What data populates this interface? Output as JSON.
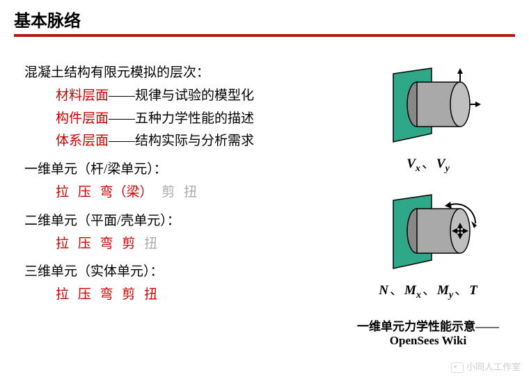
{
  "header": {
    "title": "基本脉络"
  },
  "left": {
    "h1": "混凝土结构有限元模拟的层次：",
    "l1a": "材料层面",
    "l1b": "——规律与试验的模型化",
    "l2a": "构件层面",
    "l2b": "——五种力学性能的描述",
    "l3a": "体系层面",
    "l3b": "——结构实际与分析需求",
    "h2": "一维单元（杆/梁单元）：",
    "s2_1": "拉",
    "s2_2": "压",
    "s2_3": "弯（梁）",
    "s2_4": "剪",
    "s2_5": "扭",
    "h3": "二维单元（平面/壳单元）：",
    "s3_1": "拉",
    "s3_2": "压",
    "s3_3": "弯",
    "s3_4": "剪",
    "s3_5": "扭",
    "h4": "三维单元（实体单元）：",
    "s4_1": "拉",
    "s4_2": "压",
    "s4_3": "弯",
    "s4_4": "剪",
    "s4_5": "扭"
  },
  "right": {
    "cap1_html": "<i>V<span class='sub'>x</span></i><span class='sep'>、</span><i>V<span class='sub'>y</span></i>",
    "cap2_html": "<i>N</i><span class='sep'>、</span><i>M<span class='sub'>x</span></i><span class='sep'>、</span><i>M<span class='sub'>y</span></i><span class='sep'>、</span><i>T</i>",
    "bottom": "一维单元力学性能示意——OpenSees Wiki"
  },
  "watermark": "小同人工作室",
  "colors": {
    "accent_red": "#b01818",
    "text_red": "#cc0000",
    "text_gray": "#aaaaaa",
    "diagram_green": "#2fa88a",
    "diagram_gray": "#a9a9a9"
  }
}
